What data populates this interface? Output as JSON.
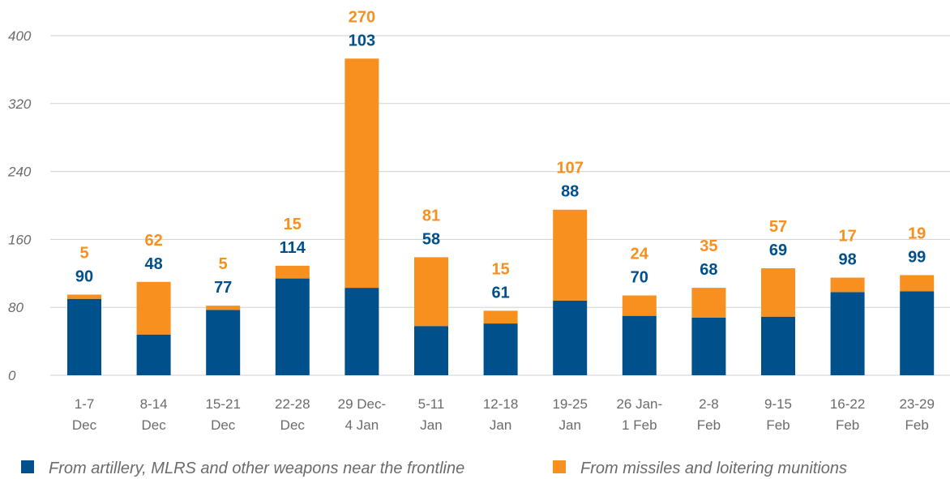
{
  "chart_data": {
    "type": "bar",
    "stacked": true,
    "categories": [
      [
        "1-7",
        "Dec"
      ],
      [
        "8-14",
        "Dec"
      ],
      [
        "15-21",
        "Dec"
      ],
      [
        "22-28",
        "Dec"
      ],
      [
        "29 Dec-",
        "4 Jan"
      ],
      [
        "5-11",
        "Jan"
      ],
      [
        "12-18",
        "Jan"
      ],
      [
        "19-25",
        "Jan"
      ],
      [
        "26 Jan-",
        "1 Feb"
      ],
      [
        "2-8",
        "Feb"
      ],
      [
        "9-15",
        "Feb"
      ],
      [
        "16-22",
        "Feb"
      ],
      [
        "23-29",
        "Feb"
      ]
    ],
    "series": [
      {
        "name": "From artillery, MLRS and other weapons near the frontline",
        "color": "#00508c",
        "values": [
          90,
          48,
          77,
          114,
          103,
          58,
          61,
          88,
          70,
          68,
          69,
          98,
          99
        ]
      },
      {
        "name": "From missiles and loitering munitions",
        "color": "#f7901e",
        "values": [
          5,
          62,
          5,
          15,
          270,
          81,
          15,
          107,
          24,
          35,
          57,
          17,
          19
        ]
      }
    ],
    "yticks": [
      "0",
      "80",
      "160",
      "240",
      "320",
      "400"
    ],
    "ylim": [
      0,
      400
    ],
    "grid": true,
    "legend_position": "bottom"
  }
}
